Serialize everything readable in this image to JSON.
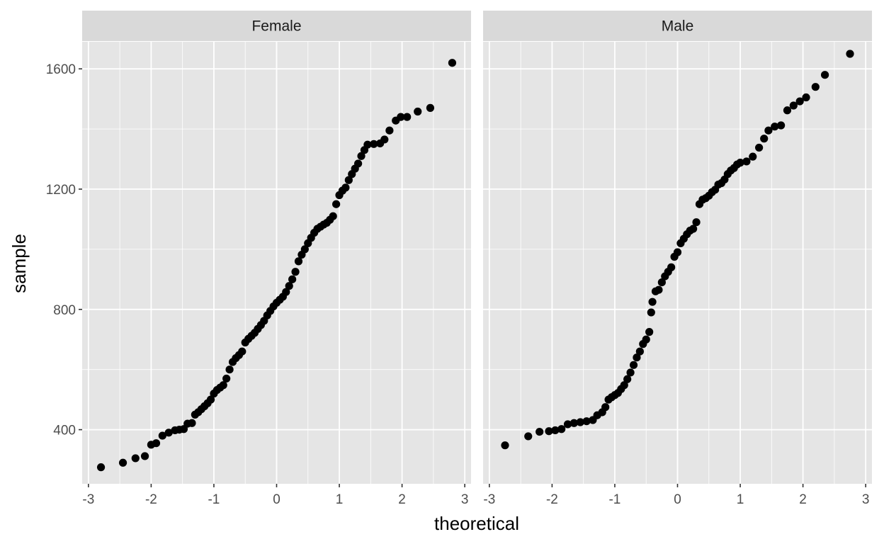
{
  "chart_data": {
    "type": "scatter",
    "title": "",
    "xlabel": "theoretical",
    "ylabel": "sample",
    "xlim": [
      -3.1,
      3.1
    ],
    "ylim": [
      220,
      1690
    ],
    "x_ticks": [
      -3,
      -2,
      -1,
      0,
      1,
      2,
      3
    ],
    "x_tick_labels": [
      "-3",
      "-2",
      "-1",
      "0",
      "1",
      "2",
      "3"
    ],
    "y_ticks": [
      400,
      800,
      1200,
      1600
    ],
    "y_tick_labels": [
      "400",
      "800",
      "1200",
      "1600"
    ],
    "grid": true,
    "colors": {
      "panel": "#e5e5e5",
      "strip": "#d9d9d9",
      "grid": "#ffffff",
      "point": "#000000"
    },
    "facets": [
      {
        "name": "Female",
        "points": [
          [
            -2.8,
            275
          ],
          [
            -2.45,
            290
          ],
          [
            -2.25,
            305
          ],
          [
            -2.1,
            312
          ],
          [
            -2.0,
            350
          ],
          [
            -1.92,
            355
          ],
          [
            -1.82,
            380
          ],
          [
            -1.72,
            390
          ],
          [
            -1.62,
            398
          ],
          [
            -1.55,
            400
          ],
          [
            -1.48,
            402
          ],
          [
            -1.42,
            420
          ],
          [
            -1.35,
            422
          ],
          [
            -1.3,
            450
          ],
          [
            -1.25,
            458
          ],
          [
            -1.2,
            468
          ],
          [
            -1.15,
            478
          ],
          [
            -1.1,
            488
          ],
          [
            -1.05,
            500
          ],
          [
            -1.0,
            520
          ],
          [
            -0.95,
            532
          ],
          [
            -0.9,
            540
          ],
          [
            -0.85,
            548
          ],
          [
            -0.8,
            570
          ],
          [
            -0.75,
            600
          ],
          [
            -0.7,
            625
          ],
          [
            -0.65,
            638
          ],
          [
            -0.6,
            648
          ],
          [
            -0.55,
            660
          ],
          [
            -0.5,
            690
          ],
          [
            -0.45,
            702
          ],
          [
            -0.4,
            712
          ],
          [
            -0.35,
            722
          ],
          [
            -0.3,
            735
          ],
          [
            -0.25,
            748
          ],
          [
            -0.2,
            762
          ],
          [
            -0.15,
            780
          ],
          [
            -0.1,
            795
          ],
          [
            -0.05,
            810
          ],
          [
            0.0,
            822
          ],
          [
            0.05,
            832
          ],
          [
            0.1,
            842
          ],
          [
            0.15,
            858
          ],
          [
            0.2,
            878
          ],
          [
            0.25,
            900
          ],
          [
            0.3,
            925
          ],
          [
            0.35,
            960
          ],
          [
            0.4,
            982
          ],
          [
            0.45,
            1000
          ],
          [
            0.5,
            1020
          ],
          [
            0.55,
            1038
          ],
          [
            0.6,
            1055
          ],
          [
            0.65,
            1068
          ],
          [
            0.7,
            1075
          ],
          [
            0.75,
            1082
          ],
          [
            0.8,
            1088
          ],
          [
            0.85,
            1098
          ],
          [
            0.9,
            1110
          ],
          [
            0.95,
            1150
          ],
          [
            1.0,
            1180
          ],
          [
            1.05,
            1195
          ],
          [
            1.1,
            1205
          ],
          [
            1.15,
            1230
          ],
          [
            1.2,
            1250
          ],
          [
            1.25,
            1268
          ],
          [
            1.3,
            1285
          ],
          [
            1.35,
            1310
          ],
          [
            1.4,
            1330
          ],
          [
            1.45,
            1348
          ],
          [
            1.55,
            1350
          ],
          [
            1.65,
            1352
          ],
          [
            1.72,
            1365
          ],
          [
            1.8,
            1395
          ],
          [
            1.9,
            1428
          ],
          [
            1.98,
            1440
          ],
          [
            2.08,
            1440
          ],
          [
            2.25,
            1458
          ],
          [
            2.45,
            1470
          ],
          [
            2.8,
            1620
          ]
        ]
      },
      {
        "name": "Male",
        "points": [
          [
            -2.75,
            348
          ],
          [
            -2.38,
            378
          ],
          [
            -2.2,
            393
          ],
          [
            -2.05,
            395
          ],
          [
            -1.95,
            398
          ],
          [
            -1.85,
            402
          ],
          [
            -1.75,
            418
          ],
          [
            -1.65,
            422
          ],
          [
            -1.55,
            425
          ],
          [
            -1.45,
            428
          ],
          [
            -1.35,
            432
          ],
          [
            -1.28,
            448
          ],
          [
            -1.2,
            458
          ],
          [
            -1.15,
            475
          ],
          [
            -1.1,
            500
          ],
          [
            -1.05,
            508
          ],
          [
            -1.0,
            515
          ],
          [
            -0.95,
            522
          ],
          [
            -0.9,
            535
          ],
          [
            -0.85,
            548
          ],
          [
            -0.8,
            568
          ],
          [
            -0.75,
            590
          ],
          [
            -0.7,
            615
          ],
          [
            -0.65,
            640
          ],
          [
            -0.6,
            660
          ],
          [
            -0.55,
            685
          ],
          [
            -0.5,
            700
          ],
          [
            -0.45,
            725
          ],
          [
            -0.42,
            790
          ],
          [
            -0.4,
            825
          ],
          [
            -0.35,
            860
          ],
          [
            -0.3,
            865
          ],
          [
            -0.25,
            890
          ],
          [
            -0.2,
            910
          ],
          [
            -0.15,
            925
          ],
          [
            -0.1,
            940
          ],
          [
            -0.05,
            975
          ],
          [
            0.0,
            990
          ],
          [
            0.05,
            1020
          ],
          [
            0.1,
            1035
          ],
          [
            0.15,
            1050
          ],
          [
            0.2,
            1062
          ],
          [
            0.25,
            1068
          ],
          [
            0.3,
            1090
          ],
          [
            0.35,
            1150
          ],
          [
            0.4,
            1165
          ],
          [
            0.45,
            1170
          ],
          [
            0.5,
            1178
          ],
          [
            0.55,
            1190
          ],
          [
            0.6,
            1198
          ],
          [
            0.65,
            1215
          ],
          [
            0.7,
            1220
          ],
          [
            0.75,
            1232
          ],
          [
            0.8,
            1250
          ],
          [
            0.85,
            1262
          ],
          [
            0.9,
            1270
          ],
          [
            0.95,
            1282
          ],
          [
            1.0,
            1288
          ],
          [
            1.1,
            1292
          ],
          [
            1.2,
            1308
          ],
          [
            1.3,
            1338
          ],
          [
            1.38,
            1368
          ],
          [
            1.45,
            1395
          ],
          [
            1.55,
            1408
          ],
          [
            1.65,
            1412
          ],
          [
            1.75,
            1462
          ],
          [
            1.85,
            1478
          ],
          [
            1.95,
            1492
          ],
          [
            2.05,
            1505
          ],
          [
            2.2,
            1540
          ],
          [
            2.35,
            1580
          ],
          [
            2.75,
            1650
          ]
        ]
      }
    ]
  }
}
